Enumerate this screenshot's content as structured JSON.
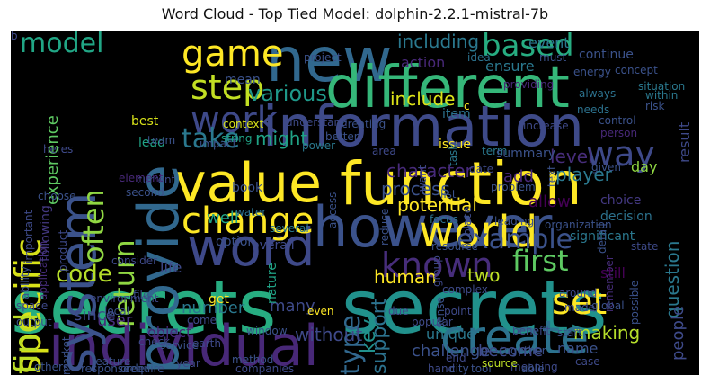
{
  "title": "Word Cloud - Top Tied Model: dolphin-2.2.1-mistral-7b",
  "words": [
    {
      "text": "secrets",
      "color": "#27ad81"
    },
    {
      "text": "secrets",
      "color": "#21918c"
    },
    {
      "text": "new",
      "color": "#31688e"
    },
    {
      "text": "different",
      "color": "#35b779"
    },
    {
      "text": "information",
      "color": "#3e4a89"
    },
    {
      "text": "function",
      "color": "#fde725"
    },
    {
      "text": "value",
      "color": "#fde725"
    },
    {
      "text": "however",
      "color": "#3b528b"
    },
    {
      "text": "individual",
      "color": "#482878"
    },
    {
      "text": "create",
      "color": "#2c728e"
    },
    {
      "text": "word",
      "color": "#3e4989"
    },
    {
      "text": "provide",
      "color": "#31688e"
    },
    {
      "text": "system",
      "color": "#3b528b"
    },
    {
      "text": "specific",
      "color": "#d8e219"
    },
    {
      "text": "often",
      "color": "#90d743"
    },
    {
      "text": "return",
      "color": "#90d743"
    },
    {
      "text": "find",
      "color": "#bddf26"
    },
    {
      "text": "change",
      "color": "#fde725"
    },
    {
      "text": "world",
      "color": "#fde725"
    },
    {
      "text": "example",
      "color": "#3b528b"
    },
    {
      "text": "known",
      "color": "#472d7b"
    },
    {
      "text": "work",
      "color": "#3e4989"
    },
    {
      "text": "based",
      "color": "#27ad81"
    },
    {
      "text": "game",
      "color": "#fde725"
    },
    {
      "text": "step",
      "color": "#c2df23"
    },
    {
      "text": "model",
      "color": "#21a685"
    },
    {
      "text": "way",
      "color": "#3e4989"
    },
    {
      "text": "code",
      "color": "#b5de2b"
    },
    {
      "text": "first",
      "color": "#5ec962"
    },
    {
      "text": "set",
      "color": "#fde725"
    },
    {
      "text": "type",
      "color": "#31688e"
    },
    {
      "text": "take",
      "color": "#2a788e"
    },
    {
      "text": "various",
      "color": "#1f998a"
    },
    {
      "text": "including",
      "color": "#2a788e"
    },
    {
      "text": "include",
      "color": "#dde318"
    },
    {
      "text": "might",
      "color": "#20a386"
    },
    {
      "text": "character",
      "color": "#472a7a"
    },
    {
      "text": "process",
      "color": "#3b528b"
    },
    {
      "text": "potential",
      "color": "#fde725"
    },
    {
      "text": "level",
      "color": "#472d7b"
    },
    {
      "text": "player",
      "color": "#2a788e"
    },
    {
      "text": "question",
      "color": "#2a788e"
    },
    {
      "text": "people",
      "color": "#3e4a89"
    },
    {
      "text": "user",
      "color": "#472d7b"
    },
    {
      "text": "two",
      "color": "#bddf26"
    },
    {
      "text": "many",
      "color": "#3e4a89"
    },
    {
      "text": "number",
      "color": "#2a788e"
    },
    {
      "text": "well",
      "color": "#20a386"
    },
    {
      "text": "human",
      "color": "#fde725"
    },
    {
      "text": "support",
      "color": "#2c728e"
    },
    {
      "text": "making",
      "color": "#b5de2b"
    },
    {
      "text": "still",
      "color": "#440154"
    },
    {
      "text": "key",
      "color": "#21918c"
    },
    {
      "text": "challenge",
      "color": "#3b528b"
    },
    {
      "text": "become",
      "color": "#3e4989"
    },
    {
      "text": "without",
      "color": "#3e4989"
    },
    {
      "text": "unique",
      "color": "#2a788e"
    },
    {
      "text": "name",
      "color": "#3b528b"
    },
    {
      "text": "object",
      "color": "#482878"
    },
    {
      "text": "since",
      "color": "#3e4989"
    },
    {
      "text": "event",
      "color": "#2a788e"
    },
    {
      "text": "ensure",
      "color": "#2a788e"
    },
    {
      "text": "experience",
      "color": "#5ec962"
    },
    {
      "text": "result",
      "color": "#3e4989"
    },
    {
      "text": "day",
      "color": "#90d743"
    },
    {
      "text": "allow",
      "color": "#440154"
    },
    {
      "text": "add",
      "color": "#482878"
    },
    {
      "text": "life",
      "color": "#3e4989"
    },
    {
      "text": "option",
      "color": "#3b528b"
    },
    {
      "text": "overall",
      "color": "#3e4a89"
    },
    {
      "text": "book",
      "color": "#3b528b"
    },
    {
      "text": "water",
      "color": "#2c728e"
    },
    {
      "text": "several",
      "color": "#2a788e"
    },
    {
      "text": "choice",
      "color": "#443983"
    },
    {
      "text": "decision",
      "color": "#2c728e"
    },
    {
      "text": "significant",
      "color": "#2a788e"
    },
    {
      "text": "nature",
      "color": "#20a386"
    },
    {
      "text": "lead",
      "color": "#20a386"
    },
    {
      "text": "best",
      "color": "#d8e219"
    },
    {
      "text": "mean",
      "color": "#3b528b"
    },
    {
      "text": "context",
      "color": "#d8e219"
    },
    {
      "text": "string",
      "color": "#20a386"
    },
    {
      "text": "impact",
      "color": "#3b528b"
    },
    {
      "text": "power",
      "color": "#2a788e"
    },
    {
      "text": "issue",
      "color": "#fde725"
    },
    {
      "text": "item",
      "color": "#2c728e"
    },
    {
      "text": "action",
      "color": "#482878"
    },
    {
      "text": "idea",
      "color": "#2c728e"
    },
    {
      "text": "continue",
      "color": "#3b528b"
    },
    {
      "text": "concept",
      "color": "#3b528b"
    },
    {
      "text": "situation",
      "color": "#2a788e"
    },
    {
      "text": "risk",
      "color": "#3b528b"
    },
    {
      "text": "control",
      "color": "#3b528b"
    },
    {
      "text": "person",
      "color": "#482878"
    },
    {
      "text": "application",
      "color": "#472d7b"
    },
    {
      "text": "following",
      "color": "#443983"
    },
    {
      "text": "important",
      "color": "#3e4a89"
    },
    {
      "text": "ability",
      "color": "#3b528b"
    },
    {
      "text": "space",
      "color": "#3e4989"
    },
    {
      "text": "output",
      "color": "#3b528b"
    },
    {
      "text": "choose",
      "color": "#3b528b"
    },
    {
      "text": "product",
      "color": "#3e4989"
    },
    {
      "text": "element",
      "color": "#482878"
    },
    {
      "text": "current",
      "color": "#3e4a89"
    },
    {
      "text": "second",
      "color": "#3b528b"
    },
    {
      "text": "heres",
      "color": "#3e4989"
    },
    {
      "text": "team",
      "color": "#3b528b"
    },
    {
      "text": "project",
      "color": "#3b528b"
    },
    {
      "text": "understand",
      "color": "#3e4a89"
    },
    {
      "text": "providing",
      "color": "#482878"
    },
    {
      "text": "must",
      "color": "#3b528b"
    },
    {
      "text": "always",
      "color": "#2c728e"
    },
    {
      "text": "needs",
      "color": "#2c728e"
    },
    {
      "text": "given",
      "color": "#3b528b"
    },
    {
      "text": "energy",
      "color": "#3b528b"
    },
    {
      "text": "within",
      "color": "#2a788e"
    },
    {
      "text": "increase",
      "color": "#3e4989"
    },
    {
      "text": "creating",
      "color": "#3b528b"
    },
    {
      "text": "better",
      "color": "#3b528b"
    },
    {
      "text": "area",
      "color": "#3e4989"
    },
    {
      "text": "term",
      "color": "#2a788e"
    },
    {
      "text": "date",
      "color": "#3e4a89"
    },
    {
      "text": "task",
      "color": "#2a788e"
    },
    {
      "text": "want",
      "color": "#3e4989"
    },
    {
      "text": "text",
      "color": "#3b528b"
    },
    {
      "text": "problem",
      "color": "#3b528b"
    },
    {
      "text": "list",
      "color": "#3b528b"
    },
    {
      "text": "focus",
      "color": "#2c728e"
    },
    {
      "text": "place",
      "color": "#3e4a89"
    },
    {
      "text": "access",
      "color": "#3b528b"
    },
    {
      "text": "reduce",
      "color": "#3b528b"
    },
    {
      "text": "detail",
      "color": "#3b528b"
    },
    {
      "text": "remember",
      "color": "#472d7b"
    },
    {
      "text": "possible",
      "color": "#3b528b"
    },
    {
      "text": "group",
      "color": "#3e4989"
    },
    {
      "text": "resource",
      "color": "#3b528b"
    },
    {
      "text": "state",
      "color": "#3e4a89"
    },
    {
      "text": "due",
      "color": "#3e4989"
    },
    {
      "text": "point",
      "color": "#3e4989"
    },
    {
      "text": "even",
      "color": "#fde725"
    },
    {
      "text": "around",
      "color": "#3e4989"
    },
    {
      "text": "made",
      "color": "#3e4a89"
    },
    {
      "text": "case",
      "color": "#3e4a89"
    },
    {
      "text": "benefit",
      "color": "#3e4a89"
    },
    {
      "text": "start",
      "color": "#3b528b"
    },
    {
      "text": "together",
      "color": "#3b528b"
    },
    {
      "text": "meaning",
      "color": "#3e4989"
    },
    {
      "text": "popular",
      "color": "#3e4a89"
    },
    {
      "text": "organization",
      "color": "#3b528b"
    },
    {
      "text": "leading",
      "color": "#3b528b"
    },
    {
      "text": "complex",
      "color": "#3e4a89"
    },
    {
      "text": "sense",
      "color": "#3b528b"
    },
    {
      "text": "hand",
      "color": "#3e4a89"
    },
    {
      "text": "end",
      "color": "#3e4989"
    },
    {
      "text": "city",
      "color": "#3b528b"
    },
    {
      "text": "tool",
      "color": "#3b528b"
    },
    {
      "text": "source",
      "color": "#bddf26"
    },
    {
      "text": "global",
      "color": "#3b528b"
    },
    {
      "text": "able",
      "color": "#3b528b"
    },
    {
      "text": "get",
      "color": "#fde725"
    },
    {
      "text": "come",
      "color": "#3e4989"
    },
    {
      "text": "earth",
      "color": "#3e4989"
    },
    {
      "text": "year",
      "color": "#3e4a89"
    },
    {
      "text": "method",
      "color": "#3b528b"
    },
    {
      "text": "companies",
      "color": "#3e4a89"
    },
    {
      "text": "window",
      "color": "#3b528b"
    },
    {
      "text": "file",
      "color": "#3b528b"
    },
    {
      "text": "environment",
      "color": "#3e4989"
    },
    {
      "text": "local",
      "color": "#3b528b"
    },
    {
      "text": "market",
      "color": "#3b528b"
    },
    {
      "text": "feature",
      "color": "#3b528b"
    },
    {
      "text": "require",
      "color": "#3b528b"
    },
    {
      "text": "service",
      "color": "#3b528b"
    },
    {
      "text": "consider",
      "color": "#3e4989"
    },
    {
      "text": "check",
      "color": "#3e4a89"
    },
    {
      "text": "order",
      "color": "#3b528b"
    },
    {
      "text": "response",
      "color": "#3b528b"
    },
    {
      "text": "others",
      "color": "#3b528b"
    },
    {
      "text": "summary",
      "color": "#3b528b"
    },
    {
      "text": "c",
      "color": "#fde725"
    },
    {
      "text": "b",
      "color": "#3e4989"
    }
  ]
}
